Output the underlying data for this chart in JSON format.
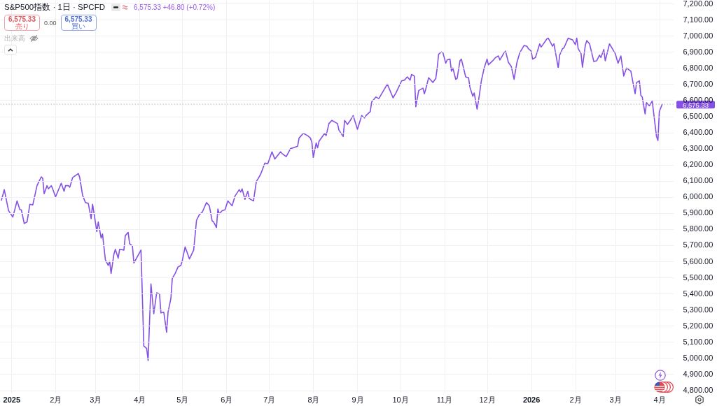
{
  "chart_data": {
    "type": "line",
    "title": "S&P500指数 · 1日 · SPCFD",
    "annotations": [
      "6,575.33 +46.80 (+0.72%)",
      "6,575.33",
      "売り",
      "0.00",
      "6,575.33",
      "買い",
      "出来高"
    ],
    "color": "#8550e6",
    "x": [
      "2024-12-25",
      "2024-12-27",
      "2024-12-30",
      "2025-01-02",
      "2025-01-05",
      "2025-01-07",
      "2025-01-08",
      "2025-01-10",
      "2025-01-12",
      "2025-01-14",
      "2025-01-16",
      "2025-01-19",
      "2025-01-22",
      "2025-01-23",
      "2025-01-24",
      "2025-01-26",
      "2025-01-27",
      "2025-01-29",
      "2025-01-30",
      "2025-02-01",
      "2025-02-05",
      "2025-02-07",
      "2025-02-08",
      "2025-02-10",
      "2025-02-11",
      "2025-02-13",
      "2025-02-17",
      "2025-02-18",
      "2025-02-20",
      "2025-02-22",
      "2025-02-24",
      "2025-02-26",
      "2025-02-27",
      "2025-03-02",
      "2025-03-03",
      "2025-03-05",
      "2025-03-06",
      "2025-03-08",
      "2025-03-10",
      "2025-03-11",
      "2025-03-12",
      "2025-03-14",
      "2025-03-15",
      "2025-03-17",
      "2025-03-18",
      "2025-03-21",
      "2025-03-22",
      "2025-03-24",
      "2025-03-25",
      "2025-03-27",
      "2025-03-28",
      "2025-04-02",
      "2025-04-04",
      "2025-04-06",
      "2025-04-07",
      "2025-04-09",
      "2025-04-11",
      "2025-04-13",
      "2025-04-15",
      "2025-04-16",
      "2025-04-18",
      "2025-04-20",
      "2025-04-21",
      "2025-04-23",
      "2025-04-24",
      "2025-04-26",
      "2025-04-28",
      "2025-04-30",
      "2025-05-01",
      "2025-05-03",
      "2025-05-06",
      "2025-05-09",
      "2025-05-11",
      "2025-05-13",
      "2025-05-15",
      "2025-05-18",
      "2025-05-20",
      "2025-05-22",
      "2025-05-23",
      "2025-05-25",
      "2025-05-26",
      "2025-05-27",
      "2025-05-29",
      "2025-05-31",
      "2025-06-02",
      "2025-06-05",
      "2025-06-07",
      "2025-06-10",
      "2025-06-11",
      "2025-06-12",
      "2025-06-14",
      "2025-06-16",
      "2025-06-17",
      "2025-06-20",
      "2025-06-22",
      "2025-06-25",
      "2025-06-28",
      "2025-06-30",
      "2025-07-03",
      "2025-07-05",
      "2025-07-09",
      "2025-07-10",
      "2025-07-13",
      "2025-07-16",
      "2025-07-18",
      "2025-07-21",
      "2025-07-22",
      "2025-07-25",
      "2025-07-28",
      "2025-07-30",
      "2025-07-31",
      "2025-08-01",
      "2025-08-03",
      "2025-08-04",
      "2025-08-05",
      "2025-08-09",
      "2025-08-10",
      "2025-08-12",
      "2025-08-14",
      "2025-08-18",
      "2025-08-19",
      "2025-08-22",
      "2025-08-23",
      "2025-08-25",
      "2025-08-27",
      "2025-08-29",
      "2025-09-01",
      "2025-09-04",
      "2025-09-06",
      "2025-09-07",
      "2025-09-10",
      "2025-09-11",
      "2025-09-14",
      "2025-09-16",
      "2025-09-22",
      "2025-09-26",
      "2025-09-28",
      "2025-10-02",
      "2025-10-04",
      "2025-10-06",
      "2025-10-08",
      "2025-10-09",
      "2025-10-11",
      "2025-10-12",
      "2025-10-14",
      "2025-10-17",
      "2025-10-18",
      "2025-10-19",
      "2025-10-21",
      "2025-10-24",
      "2025-10-26",
      "2025-10-27",
      "2025-10-28",
      "2025-10-30",
      "2025-10-31",
      "2025-11-02",
      "2025-11-03",
      "2025-11-05",
      "2025-11-06",
      "2025-11-07",
      "2025-11-09",
      "2025-11-10",
      "2025-11-12",
      "2025-11-13",
      "2025-11-16",
      "2025-11-18",
      "2025-11-19",
      "2025-11-21",
      "2025-11-22",
      "2025-11-24",
      "2025-11-25",
      "2025-11-27",
      "2025-11-29",
      "2025-12-01",
      "2025-12-02",
      "2025-12-05",
      "2025-12-07",
      "2025-12-09",
      "2025-12-10",
      "2025-12-13",
      "2025-12-14",
      "2025-12-16",
      "2025-12-18",
      "2025-12-20",
      "2025-12-22",
      "2025-12-24",
      "2025-12-27",
      "2025-12-29",
      "2025-12-30",
      "2026-01-01",
      "2026-01-02",
      "2026-01-04",
      "2026-01-07",
      "2026-01-08",
      "2026-01-12",
      "2026-01-13",
      "2026-01-16",
      "2026-01-17",
      "2026-01-20",
      "2026-01-21",
      "2026-01-23",
      "2026-01-24",
      "2026-01-27",
      "2026-01-30",
      "2026-02-01",
      "2026-02-02",
      "2026-02-03",
      "2026-02-05",
      "2026-02-06",
      "2026-02-08",
      "2026-02-09",
      "2026-02-11",
      "2026-02-14",
      "2026-02-16",
      "2026-02-18",
      "2026-02-19",
      "2026-02-21",
      "2026-02-22",
      "2026-02-25",
      "2026-02-27",
      "2026-03-01",
      "2026-03-03",
      "2026-03-05",
      "2026-03-07",
      "2026-03-09",
      "2026-03-12",
      "2026-03-14",
      "2026-03-15",
      "2026-03-16",
      "2026-03-18",
      "2026-03-19",
      "2026-03-20",
      "2026-03-22",
      "2026-03-23",
      "2026-03-25",
      "2026-03-27",
      "2026-03-30",
      "2026-03-31",
      "2026-04-01",
      "2026-04-03"
    ],
    "values": [
      5980,
      6045,
      5915,
      5875,
      5975,
      5920,
      5920,
      5835,
      5845,
      5955,
      5950,
      6070,
      6125,
      6115,
      6020,
      6070,
      6050,
      6070,
      6050,
      6000,
      6085,
      6035,
      6070,
      6070,
      6060,
      6120,
      6145,
      6120,
      6010,
      5965,
      5960,
      5865,
      5955,
      5785,
      5845,
      5745,
      5770,
      5610,
      5575,
      5600,
      5525,
      5645,
      5675,
      5620,
      5675,
      5670,
      5760,
      5780,
      5710,
      5695,
      5590,
      5670,
      5075,
      5060,
      4985,
      5460,
      5275,
      5405,
      5400,
      5280,
      5285,
      5160,
      5285,
      5370,
      5495,
      5525,
      5565,
      5575,
      5605,
      5690,
      5615,
      5670,
      5855,
      5890,
      5905,
      5965,
      5945,
      5850,
      5845,
      5810,
      5925,
      5895,
      5915,
      5920,
      5975,
      5945,
      6005,
      6045,
      6030,
      6050,
      5985,
      6035,
      5990,
      5975,
      6095,
      6140,
      6210,
      6205,
      6280,
      6235,
      6280,
      6270,
      6250,
      6300,
      6305,
      6315,
      6365,
      6395,
      6380,
      6365,
      6340,
      6245,
      6335,
      6305,
      6345,
      6395,
      6380,
      6455,
      6475,
      6455,
      6415,
      6375,
      6475,
      6450,
      6475,
      6505,
      6420,
      6505,
      6490,
      6505,
      6530,
      6590,
      6620,
      6610,
      6700,
      6615,
      6645,
      6720,
      6725,
      6745,
      6725,
      6760,
      6750,
      6560,
      6660,
      6675,
      6640,
      6670,
      6740,
      6710,
      6735,
      6800,
      6885,
      6900,
      6895,
      6830,
      6850,
      6855,
      6780,
      6800,
      6730,
      6735,
      6845,
      6855,
      6745,
      6740,
      6680,
      6625,
      6645,
      6545,
      6595,
      6720,
      6800,
      6855,
      6820,
      6845,
      6865,
      6875,
      6850,
      6895,
      6905,
      6835,
      6810,
      6730,
      6835,
      6895,
      6940,
      6935,
      6920,
      6905,
      6855,
      6865,
      6950,
      6930,
      6980,
      6985,
      6935,
      6950,
      6800,
      6880,
      6920,
      6925,
      6985,
      6975,
      6945,
      6985,
      6920,
      6890,
      6805,
      6940,
      6970,
      6950,
      6840,
      6845,
      6880,
      6865,
      6915,
      6845,
      6950,
      6920,
      6890,
      6830,
      6875,
      6750,
      6800,
      6780,
      6685,
      6640,
      6710,
      6720,
      6630,
      6620,
      6515,
      6585,
      6565,
      6595,
      6375,
      6350,
      6530,
      6575
    ],
    "xlim": [
      "2024-12-24",
      "2026-04-11"
    ],
    "xticks": [
      {
        "value": "2025-01-01",
        "label": "2025"
      },
      {
        "value": "2025-02-01",
        "label": "2月"
      },
      {
        "value": "2025-03-01",
        "label": "3月"
      },
      {
        "value": "2025-04-01",
        "label": "4月"
      },
      {
        "value": "2025-05-01",
        "label": "5月"
      },
      {
        "value": "2025-06-01",
        "label": "6月"
      },
      {
        "value": "2025-07-01",
        "label": "7月"
      },
      {
        "value": "2025-08-01",
        "label": "8月"
      },
      {
        "value": "2025-09-01",
        "label": "9月"
      },
      {
        "value": "2025-10-01",
        "label": "10月"
      },
      {
        "value": "2025-11-01",
        "label": "11月"
      },
      {
        "value": "2025-12-01",
        "label": "12月"
      },
      {
        "value": "2026-01-01",
        "label": "2026"
      },
      {
        "value": "2026-02-01",
        "label": "2月"
      },
      {
        "value": "2026-03-01",
        "label": "3月"
      },
      {
        "value": "2026-04-01",
        "label": "4月"
      }
    ],
    "ylim": [
      4785,
      7222
    ],
    "yticks": [
      {
        "value": 4800,
        "label": "4,800.00"
      },
      {
        "value": 4900,
        "label": "4,900.00"
      },
      {
        "value": 5000,
        "label": "5,000.00"
      },
      {
        "value": 5100,
        "label": "5,100.00"
      },
      {
        "value": 5200,
        "label": "5,200.00"
      },
      {
        "value": 5300,
        "label": "5,300.00"
      },
      {
        "value": 5400,
        "label": "5,400.00"
      },
      {
        "value": 5500,
        "label": "5,500.00"
      },
      {
        "value": 5600,
        "label": "5,600.00"
      },
      {
        "value": 5700,
        "label": "5,700.00"
      },
      {
        "value": 5800,
        "label": "5,800.00"
      },
      {
        "value": 5900,
        "label": "5,900.00"
      },
      {
        "value": 6000,
        "label": "6,000.00"
      },
      {
        "value": 6100,
        "label": "6,100.00"
      },
      {
        "value": 6200,
        "label": "6,200.00"
      },
      {
        "value": 6300,
        "label": "6,300.00"
      },
      {
        "value": 6400,
        "label": "6,400.00"
      },
      {
        "value": 6500,
        "label": "6,500.00"
      },
      {
        "value": 6600,
        "label": "6,600.00"
      },
      {
        "value": 6700,
        "label": "6,700.00"
      },
      {
        "value": 6800,
        "label": "6,800.00"
      },
      {
        "value": 6900,
        "label": "6,900.00"
      },
      {
        "value": 7000,
        "label": "7,000.00"
      },
      {
        "value": 7100,
        "label": "7,100.00"
      },
      {
        "value": 7200,
        "label": "7,200.00"
      }
    ],
    "grid": true,
    "ref_lines": [
      {
        "axis": "y",
        "value": 6575.33,
        "label": "6,575.33",
        "color": "#b4b4bc",
        "line_style": "dotted"
      }
    ]
  }
}
